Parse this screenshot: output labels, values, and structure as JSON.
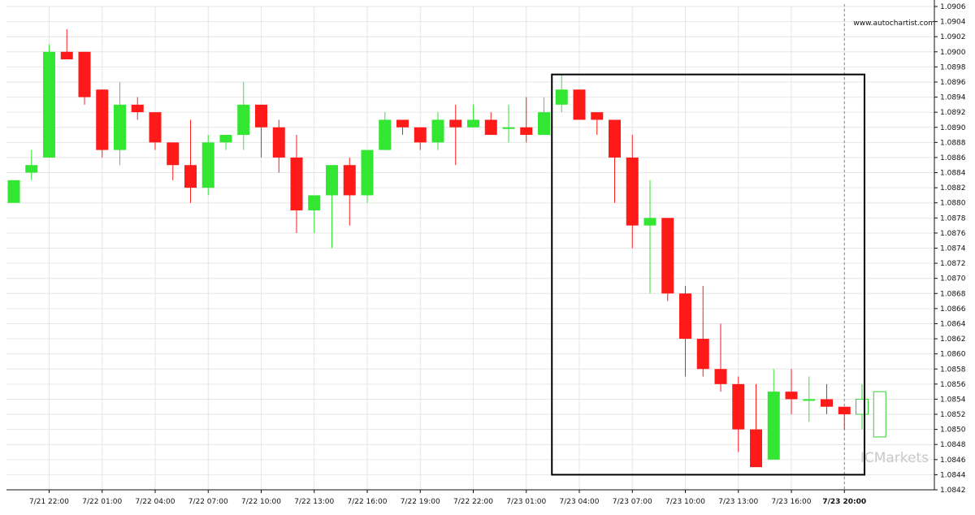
{
  "chart_data": {
    "type": "candlestick",
    "brand_url": "www.autochartist.com",
    "watermark": "ICMarkets",
    "y_axis": {
      "min": 1.0842,
      "max": 1.0906,
      "ticks": [
        "1.0842",
        "1.0844",
        "1.0846",
        "1.0848",
        "1.0850",
        "1.0852",
        "1.0854",
        "1.0856",
        "1.0858",
        "1.0860",
        "1.0862",
        "1.0864",
        "1.0866",
        "1.0868",
        "1.0870",
        "1.0872",
        "1.0874",
        "1.0876",
        "1.0878",
        "1.0880",
        "1.0882",
        "1.0884",
        "1.0886",
        "1.0888",
        "1.0890",
        "1.0892",
        "1.0894",
        "1.0896",
        "1.0898",
        "1.0900",
        "1.0902",
        "1.0904",
        "1.0906"
      ]
    },
    "x_axis": {
      "labels": [
        {
          "text": "7/21 22:00",
          "index": 2
        },
        {
          "text": "7/22 01:00",
          "index": 5
        },
        {
          "text": "7/22 04:00",
          "index": 8
        },
        {
          "text": "7/22 07:00",
          "index": 11
        },
        {
          "text": "7/22 10:00",
          "index": 14
        },
        {
          "text": "7/22 13:00",
          "index": 17
        },
        {
          "text": "7/22 16:00",
          "index": 20
        },
        {
          "text": "7/22 19:00",
          "index": 23
        },
        {
          "text": "7/22 22:00",
          "index": 26
        },
        {
          "text": "7/23 01:00",
          "index": 29
        },
        {
          "text": "7/23 04:00",
          "index": 32
        },
        {
          "text": "7/23 07:00",
          "index": 35
        },
        {
          "text": "7/23 10:00",
          "index": 38
        },
        {
          "text": "7/23 13:00",
          "index": 41
        },
        {
          "text": "7/23 16:00",
          "index": 44
        },
        {
          "text": "7/23 20:00",
          "index": 47,
          "bold": true
        }
      ]
    },
    "candles": [
      {
        "o": 1.088,
        "h": 1.0883,
        "l": 1.088,
        "c": 1.0883
      },
      {
        "o": 1.0884,
        "h": 1.0887,
        "l": 1.0883,
        "c": 1.0885
      },
      {
        "o": 1.0886,
        "h": 1.0901,
        "l": 1.0886,
        "c": 1.09
      },
      {
        "o": 1.09,
        "h": 1.0903,
        "l": 1.0899,
        "c": 1.0899
      },
      {
        "o": 1.09,
        "h": 1.09,
        "l": 1.0893,
        "c": 1.0894
      },
      {
        "o": 1.0895,
        "h": 1.0895,
        "l": 1.0886,
        "c": 1.0887
      },
      {
        "o": 1.0887,
        "h": 1.0896,
        "l": 1.0885,
        "c": 1.0893
      },
      {
        "o": 1.0893,
        "h": 1.0894,
        "l": 1.0891,
        "c": 1.0892
      },
      {
        "o": 1.0892,
        "h": 1.0892,
        "l": 1.0887,
        "c": 1.0888
      },
      {
        "o": 1.0888,
        "h": 1.0888,
        "l": 1.0883,
        "c": 1.0885
      },
      {
        "o": 1.0885,
        "h": 1.0891,
        "l": 1.088,
        "c": 1.0882
      },
      {
        "o": 1.0882,
        "h": 1.0889,
        "l": 1.0881,
        "c": 1.0888
      },
      {
        "o": 1.0888,
        "h": 1.0889,
        "l": 1.0887,
        "c": 1.0889
      },
      {
        "o": 1.0889,
        "h": 1.0896,
        "l": 1.0887,
        "c": 1.0893
      },
      {
        "o": 1.0893,
        "h": 1.0893,
        "l": 1.0886,
        "c": 1.089
      },
      {
        "o": 1.089,
        "h": 1.0891,
        "l": 1.0884,
        "c": 1.0886
      },
      {
        "o": 1.0886,
        "h": 1.0889,
        "l": 1.0876,
        "c": 1.0879
      },
      {
        "o": 1.0879,
        "h": 1.0881,
        "l": 1.0876,
        "c": 1.0881
      },
      {
        "o": 1.0881,
        "h": 1.0885,
        "l": 1.0874,
        "c": 1.0885
      },
      {
        "o": 1.0885,
        "h": 1.0886,
        "l": 1.0877,
        "c": 1.0881
      },
      {
        "o": 1.0881,
        "h": 1.0887,
        "l": 1.088,
        "c": 1.0887
      },
      {
        "o": 1.0887,
        "h": 1.0892,
        "l": 1.0887,
        "c": 1.0891
      },
      {
        "o": 1.0891,
        "h": 1.0891,
        "l": 1.0889,
        "c": 1.089
      },
      {
        "o": 1.089,
        "h": 1.089,
        "l": 1.0887,
        "c": 1.0888
      },
      {
        "o": 1.0888,
        "h": 1.0892,
        "l": 1.0887,
        "c": 1.0891
      },
      {
        "o": 1.0891,
        "h": 1.0893,
        "l": 1.0885,
        "c": 1.089
      },
      {
        "o": 1.089,
        "h": 1.0893,
        "l": 1.089,
        "c": 1.0891
      },
      {
        "o": 1.0891,
        "h": 1.0892,
        "l": 1.0889,
        "c": 1.0889
      },
      {
        "o": 1.089,
        "h": 1.0893,
        "l": 1.0888,
        "c": 1.089
      },
      {
        "o": 1.089,
        "h": 1.0894,
        "l": 1.0888,
        "c": 1.0889
      },
      {
        "o": 1.0889,
        "h": 1.0894,
        "l": 1.0889,
        "c": 1.0892
      },
      {
        "o": 1.0893,
        "h": 1.0897,
        "l": 1.0892,
        "c": 1.0895
      },
      {
        "o": 1.0895,
        "h": 1.0895,
        "l": 1.0891,
        "c": 1.0891
      },
      {
        "o": 1.0892,
        "h": 1.0892,
        "l": 1.0889,
        "c": 1.0891
      },
      {
        "o": 1.0891,
        "h": 1.0891,
        "l": 1.088,
        "c": 1.0886
      },
      {
        "o": 1.0886,
        "h": 1.0889,
        "l": 1.0874,
        "c": 1.0877
      },
      {
        "o": 1.0877,
        "h": 1.0883,
        "l": 1.0868,
        "c": 1.0878
      },
      {
        "o": 1.0878,
        "h": 1.0878,
        "l": 1.0867,
        "c": 1.0868
      },
      {
        "o": 1.0868,
        "h": 1.0869,
        "l": 1.0857,
        "c": 1.0862
      },
      {
        "o": 1.0862,
        "h": 1.0869,
        "l": 1.0857,
        "c": 1.0858
      },
      {
        "o": 1.0858,
        "h": 1.0864,
        "l": 1.0855,
        "c": 1.0856
      },
      {
        "o": 1.0856,
        "h": 1.0857,
        "l": 1.0847,
        "c": 1.085
      },
      {
        "o": 1.085,
        "h": 1.0856,
        "l": 1.0845,
        "c": 1.0845
      },
      {
        "o": 1.0846,
        "h": 1.0858,
        "l": 1.0846,
        "c": 1.0855
      },
      {
        "o": 1.0855,
        "h": 1.0858,
        "l": 1.0852,
        "c": 1.0854
      },
      {
        "o": 1.0854,
        "h": 1.0857,
        "l": 1.0851,
        "c": 1.0854
      },
      {
        "o": 1.0854,
        "h": 1.0856,
        "l": 1.0852,
        "c": 1.0853
      },
      {
        "o": 1.0853,
        "h": 1.0853,
        "l": 1.085,
        "c": 1.0852
      },
      {
        "o": 1.0852,
        "h": 1.0856,
        "l": 1.085,
        "c": 1.0854,
        "projected": true
      },
      {
        "o": 1.0849,
        "h": 1.0855,
        "l": 1.0849,
        "c": 1.0855,
        "projected": true
      }
    ],
    "highlight_box": {
      "start_index": 31,
      "end_index": 48,
      "high": 1.0897,
      "low": 1.0844
    },
    "current_time_index": 47,
    "colors": {
      "up": "#32e632",
      "down": "#ff1a1a",
      "projected_up": "#32d232",
      "box": "#000000",
      "grid": "#e6e6e6",
      "axis": "#111111",
      "current_time_line": "#888888"
    },
    "grid": true
  }
}
